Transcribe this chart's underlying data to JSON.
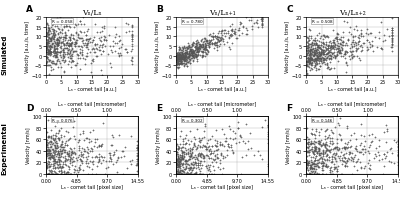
{
  "panels": [
    {
      "label": "A",
      "title": "Vₙ/Lₙ",
      "r_value": "R = 0.058",
      "row": 0,
      "col": 0,
      "xlim": [
        0,
        30
      ],
      "ylim": [
        -10,
        20
      ],
      "xticks": [
        0,
        5,
        10,
        15,
        20,
        25,
        30
      ],
      "yticks": [
        -10,
        -5,
        0,
        5,
        10,
        15,
        20
      ],
      "xlabel": "Lₙ - comet tail [a.u.]",
      "ylabel": "Velocity [a.u./s, time]",
      "seed": 42,
      "n": 600,
      "x_scale": 8,
      "slope": 0.05,
      "noise": 6,
      "yoffset": 5
    },
    {
      "label": "B",
      "title": "Vₙ/Lₙ₊₁",
      "r_value": "R = 0.780",
      "row": 0,
      "col": 1,
      "xlim": [
        0,
        30
      ],
      "ylim": [
        -10,
        20
      ],
      "xticks": [
        0,
        5,
        10,
        15,
        20,
        25,
        30
      ],
      "yticks": [
        -10,
        -5,
        0,
        5,
        10,
        15,
        20
      ],
      "xlabel": "Lₙ - comet tail [a.u.]",
      "ylabel": "Velocity [a.u./s, time]",
      "seed": 43,
      "n": 600,
      "x_scale": 8,
      "slope": 0.75,
      "noise": 2.5,
      "yoffset": -2
    },
    {
      "label": "C",
      "title": "Vₙ/Lₙ₊₂",
      "r_value": "R = 0.508",
      "row": 0,
      "col": 2,
      "xlim": [
        0,
        30
      ],
      "ylim": [
        -10,
        20
      ],
      "xticks": [
        0,
        5,
        10,
        15,
        20,
        25,
        30
      ],
      "yticks": [
        -10,
        -5,
        0,
        5,
        10,
        15,
        20
      ],
      "xlabel": "Lₙ - comet tail [a.u.]",
      "ylabel": "Velocity [a.u./s, time]",
      "seed": 44,
      "n": 600,
      "x_scale": 8,
      "slope": 0.4,
      "noise": 4.5,
      "yoffset": 0
    },
    {
      "label": "D",
      "title": null,
      "r_value": "R = 0.076",
      "row": 1,
      "col": 0,
      "xlim": [
        0.0,
        14.55
      ],
      "ylim": [
        0,
        100
      ],
      "xticks": [
        0.0,
        4.85,
        9.7,
        14.55
      ],
      "xticklabels": [
        "0.00",
        "4.85",
        "9.70",
        "14.55"
      ],
      "yticks": [
        0,
        20,
        40,
        60,
        80,
        100
      ],
      "xlabel": "Lₙ - comet tail [pixel size]",
      "xlabel_top": "Lₙ - comet tail [micrometer]",
      "xticks_top": [
        0.0,
        4.85,
        9.7
      ],
      "xticklabels_top": [
        "0.00",
        "0.50",
        "1.00"
      ],
      "ylabel": "Velocity [nm/s]",
      "seed": 45,
      "n": 500,
      "x_scale": 4,
      "slope": 0.5,
      "noise": 22,
      "yoffset": 30
    },
    {
      "label": "E",
      "title": null,
      "r_value": "R = 0.302",
      "row": 1,
      "col": 1,
      "xlim": [
        0.0,
        14.55
      ],
      "ylim": [
        0,
        100
      ],
      "xticks": [
        0.0,
        4.85,
        9.7,
        14.55
      ],
      "xticklabels": [
        "0.00",
        "4.85",
        "9.70",
        "14.55"
      ],
      "yticks": [
        0,
        20,
        40,
        60,
        80,
        100
      ],
      "xlabel": "Lₙ - comet tail [pixel size]",
      "xlabel_top": "Lₙ - comet tail [micrometer]",
      "xticks_top": [
        0.0,
        4.85,
        9.7
      ],
      "xticklabels_top": [
        "0.00",
        "0.50",
        "1.00"
      ],
      "ylabel": "Velocity [nm/s]",
      "seed": 46,
      "n": 500,
      "x_scale": 4,
      "slope": 3.5,
      "noise": 20,
      "yoffset": 15
    },
    {
      "label": "F",
      "title": null,
      "r_value": "R = 0.146",
      "row": 1,
      "col": 2,
      "xlim": [
        0.0,
        14.55
      ],
      "ylim": [
        0,
        100
      ],
      "xticks": [
        0.0,
        4.85,
        9.7,
        14.55
      ],
      "xticklabels": [
        "0.00",
        "4.85",
        "9.70",
        "14.55"
      ],
      "yticks": [
        0,
        20,
        40,
        60,
        80,
        100
      ],
      "xlabel": "Lₙ - comet tail [pixel size]",
      "xlabel_top": "Lₙ - comet tail [micrometer]",
      "xticks_top": [
        0.0,
        4.85,
        9.7
      ],
      "xticklabels_top": [
        "0.00",
        "0.50",
        "1.00"
      ],
      "ylabel": "Velocity [nm/s]",
      "seed": 47,
      "n": 500,
      "x_scale": 4,
      "slope": 1.2,
      "noise": 22,
      "yoffset": 28
    }
  ],
  "row_labels": [
    "Simulated",
    "Experimental"
  ],
  "scatter_color": "#555555",
  "marker_size": 1.5,
  "marker": "+"
}
